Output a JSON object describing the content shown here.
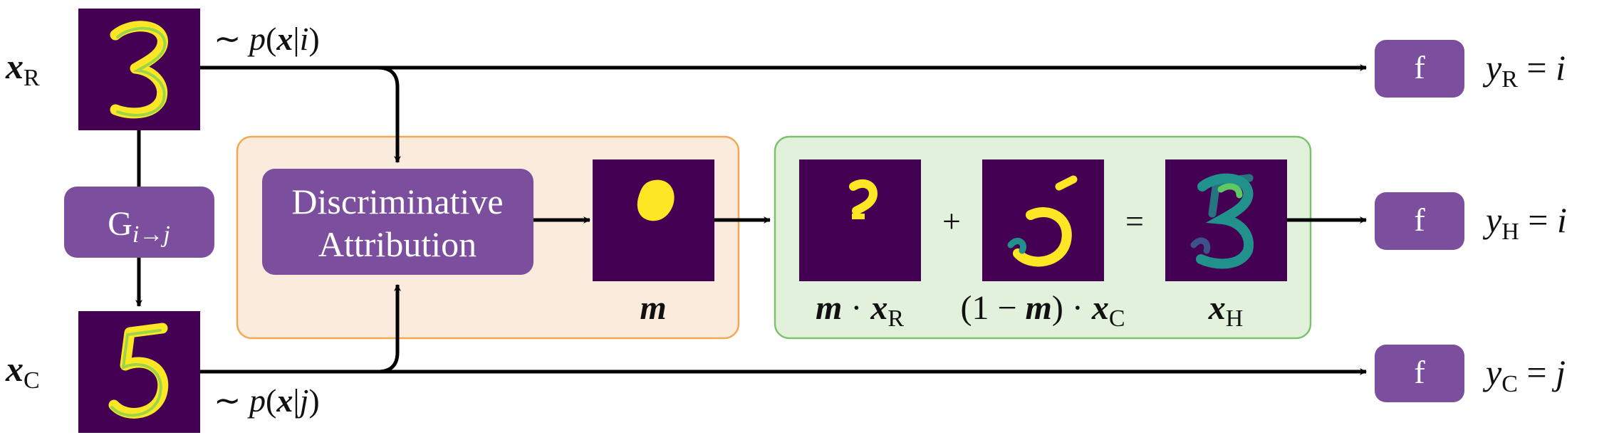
{
  "colors": {
    "purple_box": "#7b4f9d",
    "image_bg": "#440154",
    "mask_yellow": "#fde725",
    "digit_teal": "#21918c",
    "digit_green": "#5ec962",
    "orange_panel_fill": "#faebdc",
    "orange_panel_border": "#f0a955",
    "green_panel_fill": "#e2f1dc",
    "green_panel_border": "#7cc46b",
    "arrow": "#000000"
  },
  "labels": {
    "x_r": {
      "main": "x",
      "sub": "R"
    },
    "x_c": {
      "main": "x",
      "sub": "C"
    },
    "dist_top": {
      "pre": "∼ ",
      "p": "p",
      "open": "(",
      "x": "x",
      "bar": "|",
      "cond": "i",
      "close": ")"
    },
    "dist_bottom": {
      "pre": "∼ ",
      "p": "p",
      "open": "(",
      "x": "x",
      "bar": "|",
      "cond": "j",
      "close": ")"
    },
    "generator": {
      "main": "G",
      "sub": "i→j"
    },
    "discriminative_line1": "Discriminative",
    "discriminative_line2": "Attribution",
    "mask": "m",
    "masked_real": {
      "m": "m",
      "dot": " · ",
      "x": "x",
      "sub": "R"
    },
    "masked_cf": {
      "pre": "(1 − ",
      "m": "m",
      "post": ") · ",
      "x": "x",
      "sub": "C"
    },
    "hybrid": {
      "x": "x",
      "sub": "H"
    },
    "plus": "+",
    "equals": "=",
    "classifier": "f",
    "out_r": {
      "y": "y",
      "sub": "R",
      "eq": " = ",
      "val": "i"
    },
    "out_h": {
      "y": "y",
      "sub": "H",
      "eq": " = ",
      "val": "i"
    },
    "out_c": {
      "y": "y",
      "sub": "C",
      "eq": " = ",
      "val": "j"
    }
  }
}
